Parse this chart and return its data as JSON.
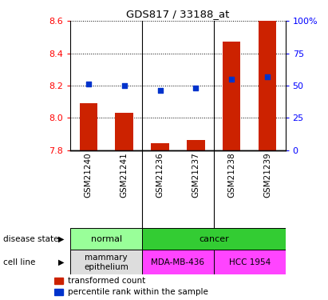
{
  "title": "GDS817 / 33188_at",
  "samples": [
    "GSM21240",
    "GSM21241",
    "GSM21236",
    "GSM21237",
    "GSM21238",
    "GSM21239"
  ],
  "bar_values": [
    8.09,
    8.03,
    7.84,
    7.86,
    8.47,
    8.6
  ],
  "percentile_values": [
    51,
    50,
    46,
    48,
    55,
    57
  ],
  "ylim_left": [
    7.8,
    8.6
  ],
  "ylim_right": [
    0,
    100
  ],
  "yticks_left": [
    7.8,
    8.0,
    8.2,
    8.4,
    8.6
  ],
  "yticks_right": [
    0,
    25,
    50,
    75,
    100
  ],
  "ytick_labels_right": [
    "0",
    "25",
    "50",
    "75",
    "100%"
  ],
  "bar_color": "#CC2200",
  "dot_color": "#0033CC",
  "bar_width": 0.5,
  "group_borders": [
    2,
    4
  ],
  "ds_data": [
    [
      "normal",
      0,
      2,
      "#99FF99"
    ],
    [
      "cancer",
      2,
      6,
      "#33CC33"
    ]
  ],
  "cl_data": [
    [
      "mammary\nepithelium",
      0,
      2,
      "#DDDDDD"
    ],
    [
      "MDA-MB-436",
      2,
      4,
      "#FF44FF"
    ],
    [
      "HCC 1954",
      4,
      6,
      "#FF44FF"
    ]
  ],
  "n_samples": 6
}
